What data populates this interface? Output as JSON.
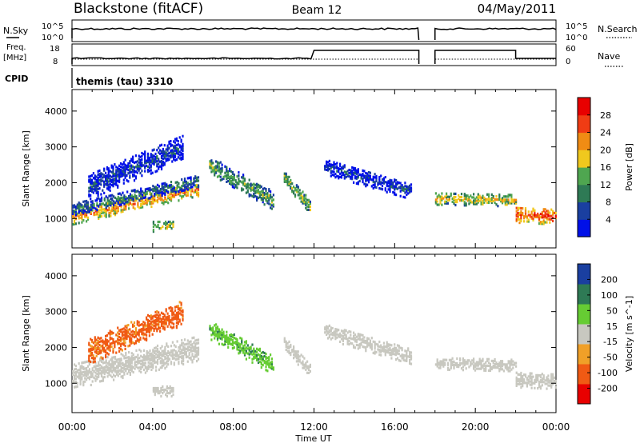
{
  "header": {
    "title": "Blackstone (fitACF)",
    "beam": "Beam 12",
    "date": "04/May/2011"
  },
  "strips": {
    "nsky_label": "N.Sky",
    "nsky_ticks": [
      "10^5",
      "10^0"
    ],
    "nsearch_label": "N.Search",
    "nsearch_ticks": [
      "10^5",
      "10^0"
    ],
    "freq_label": "Freq.",
    "freq_unit": "[MHz]",
    "freq_ticks": [
      "18",
      "8"
    ],
    "nave_label": "Nave",
    "nave_ticks": [
      "60",
      "0"
    ],
    "cpid_label": "CPID",
    "cpid_text": "themis (tau) 3310"
  },
  "colors": {
    "power": [
      "#0010e8",
      "#1a3fa0",
      "#2e7a55",
      "#4fa650",
      "#f0c81e",
      "#f08c14",
      "#f03c14",
      "#e80000"
    ],
    "velocity": [
      "#e80000",
      "#f05a14",
      "#f0a028",
      "#c8c8c0",
      "#66cc33",
      "#2e7a55",
      "#1a3fa0"
    ],
    "ground_scatter": "#c8c8c0"
  },
  "chart_data": [
    {
      "type": "heatmap",
      "name": "power",
      "xlabel": "Time UT",
      "ylabel": "Slant Range [km]",
      "x_ticks": [
        "00:00",
        "04:00",
        "08:00",
        "12:00",
        "16:00",
        "20:00",
        "00:00"
      ],
      "xlim_hours": [
        0,
        24
      ],
      "ylim": [
        180,
        4600
      ],
      "y_ticks": [
        1000,
        2000,
        3000,
        4000
      ],
      "colorbar_label": "Power [dB]",
      "colorbar_ticks": [
        4,
        8,
        12,
        16,
        20,
        24,
        28
      ],
      "clim": [
        0,
        32
      ],
      "regions": [
        {
          "t0": 0.0,
          "t1": 6.3,
          "r0_start": 800,
          "r0_end": 1600,
          "thick": 400,
          "v": 22
        },
        {
          "t0": 0.0,
          "t1": 6.3,
          "r0_start": 1050,
          "r0_end": 1850,
          "thick": 350,
          "v": 10
        },
        {
          "t0": 0.8,
          "t1": 5.5,
          "r0_start": 1500,
          "r0_end": 2600,
          "thick": 700,
          "v": 6
        },
        {
          "t0": 4.0,
          "t1": 5.0,
          "r0_start": 600,
          "r0_end": 600,
          "thick": 300,
          "v": 18
        },
        {
          "t0": 6.8,
          "t1": 10.0,
          "r0_start": 2200,
          "r0_end": 1200,
          "thick": 500,
          "v": 14
        },
        {
          "t0": 10.5,
          "t1": 11.8,
          "r0_start": 1900,
          "r0_end": 1100,
          "thick": 400,
          "v": 16
        },
        {
          "t0": 12.5,
          "t1": 16.8,
          "r0_start": 2200,
          "r0_end": 1500,
          "thick": 450,
          "v": 6
        },
        {
          "t0": 18.0,
          "t1": 22.0,
          "r0_start": 1350,
          "r0_end": 1300,
          "thick": 350,
          "v": 18
        },
        {
          "t0": 22.0,
          "t1": 24.0,
          "r0_start": 850,
          "r0_end": 800,
          "thick": 450,
          "v": 26
        }
      ],
      "gaps_hours": [
        [
          17.2,
          18.0
        ]
      ]
    },
    {
      "type": "heatmap",
      "name": "velocity",
      "xlabel": "Time UT",
      "ylabel": "Slant Range [km]",
      "x_ticks": [
        "00:00",
        "04:00",
        "08:00",
        "12:00",
        "16:00",
        "20:00",
        "00:00"
      ],
      "xlim_hours": [
        0,
        24
      ],
      "ylim": [
        180,
        4600
      ],
      "y_ticks": [
        1000,
        2000,
        3000,
        4000
      ],
      "colorbar_label": "Velocity [m s^-1]",
      "colorbar_ticks": [
        200,
        100,
        50,
        15,
        -15,
        -50,
        -100,
        -200
      ],
      "clim": [
        -250,
        250
      ],
      "regions": [
        {
          "t0": 0.0,
          "t1": 6.3,
          "r0_start": 800,
          "r0_end": 1600,
          "thick": 700,
          "v": 0
        },
        {
          "t0": 0.8,
          "t1": 5.5,
          "r0_start": 1500,
          "r0_end": 2600,
          "thick": 700,
          "v": -60
        },
        {
          "t0": 4.0,
          "t1": 5.0,
          "r0_start": 600,
          "r0_end": 600,
          "thick": 300,
          "v": 0
        },
        {
          "t0": 6.8,
          "t1": 10.0,
          "r0_start": 2200,
          "r0_end": 1200,
          "thick": 500,
          "v": 40
        },
        {
          "t0": 10.5,
          "t1": 11.8,
          "r0_start": 1900,
          "r0_end": 1100,
          "thick": 400,
          "v": 0
        },
        {
          "t0": 12.5,
          "t1": 16.8,
          "r0_start": 2200,
          "r0_end": 1500,
          "thick": 450,
          "v": 0
        },
        {
          "t0": 18.0,
          "t1": 22.0,
          "r0_start": 1350,
          "r0_end": 1300,
          "thick": 350,
          "v": 0
        },
        {
          "t0": 22.0,
          "t1": 24.0,
          "r0_start": 850,
          "r0_end": 800,
          "thick": 450,
          "v": 0
        }
      ],
      "gaps_hours": [
        [
          17.2,
          18.0
        ]
      ]
    }
  ]
}
